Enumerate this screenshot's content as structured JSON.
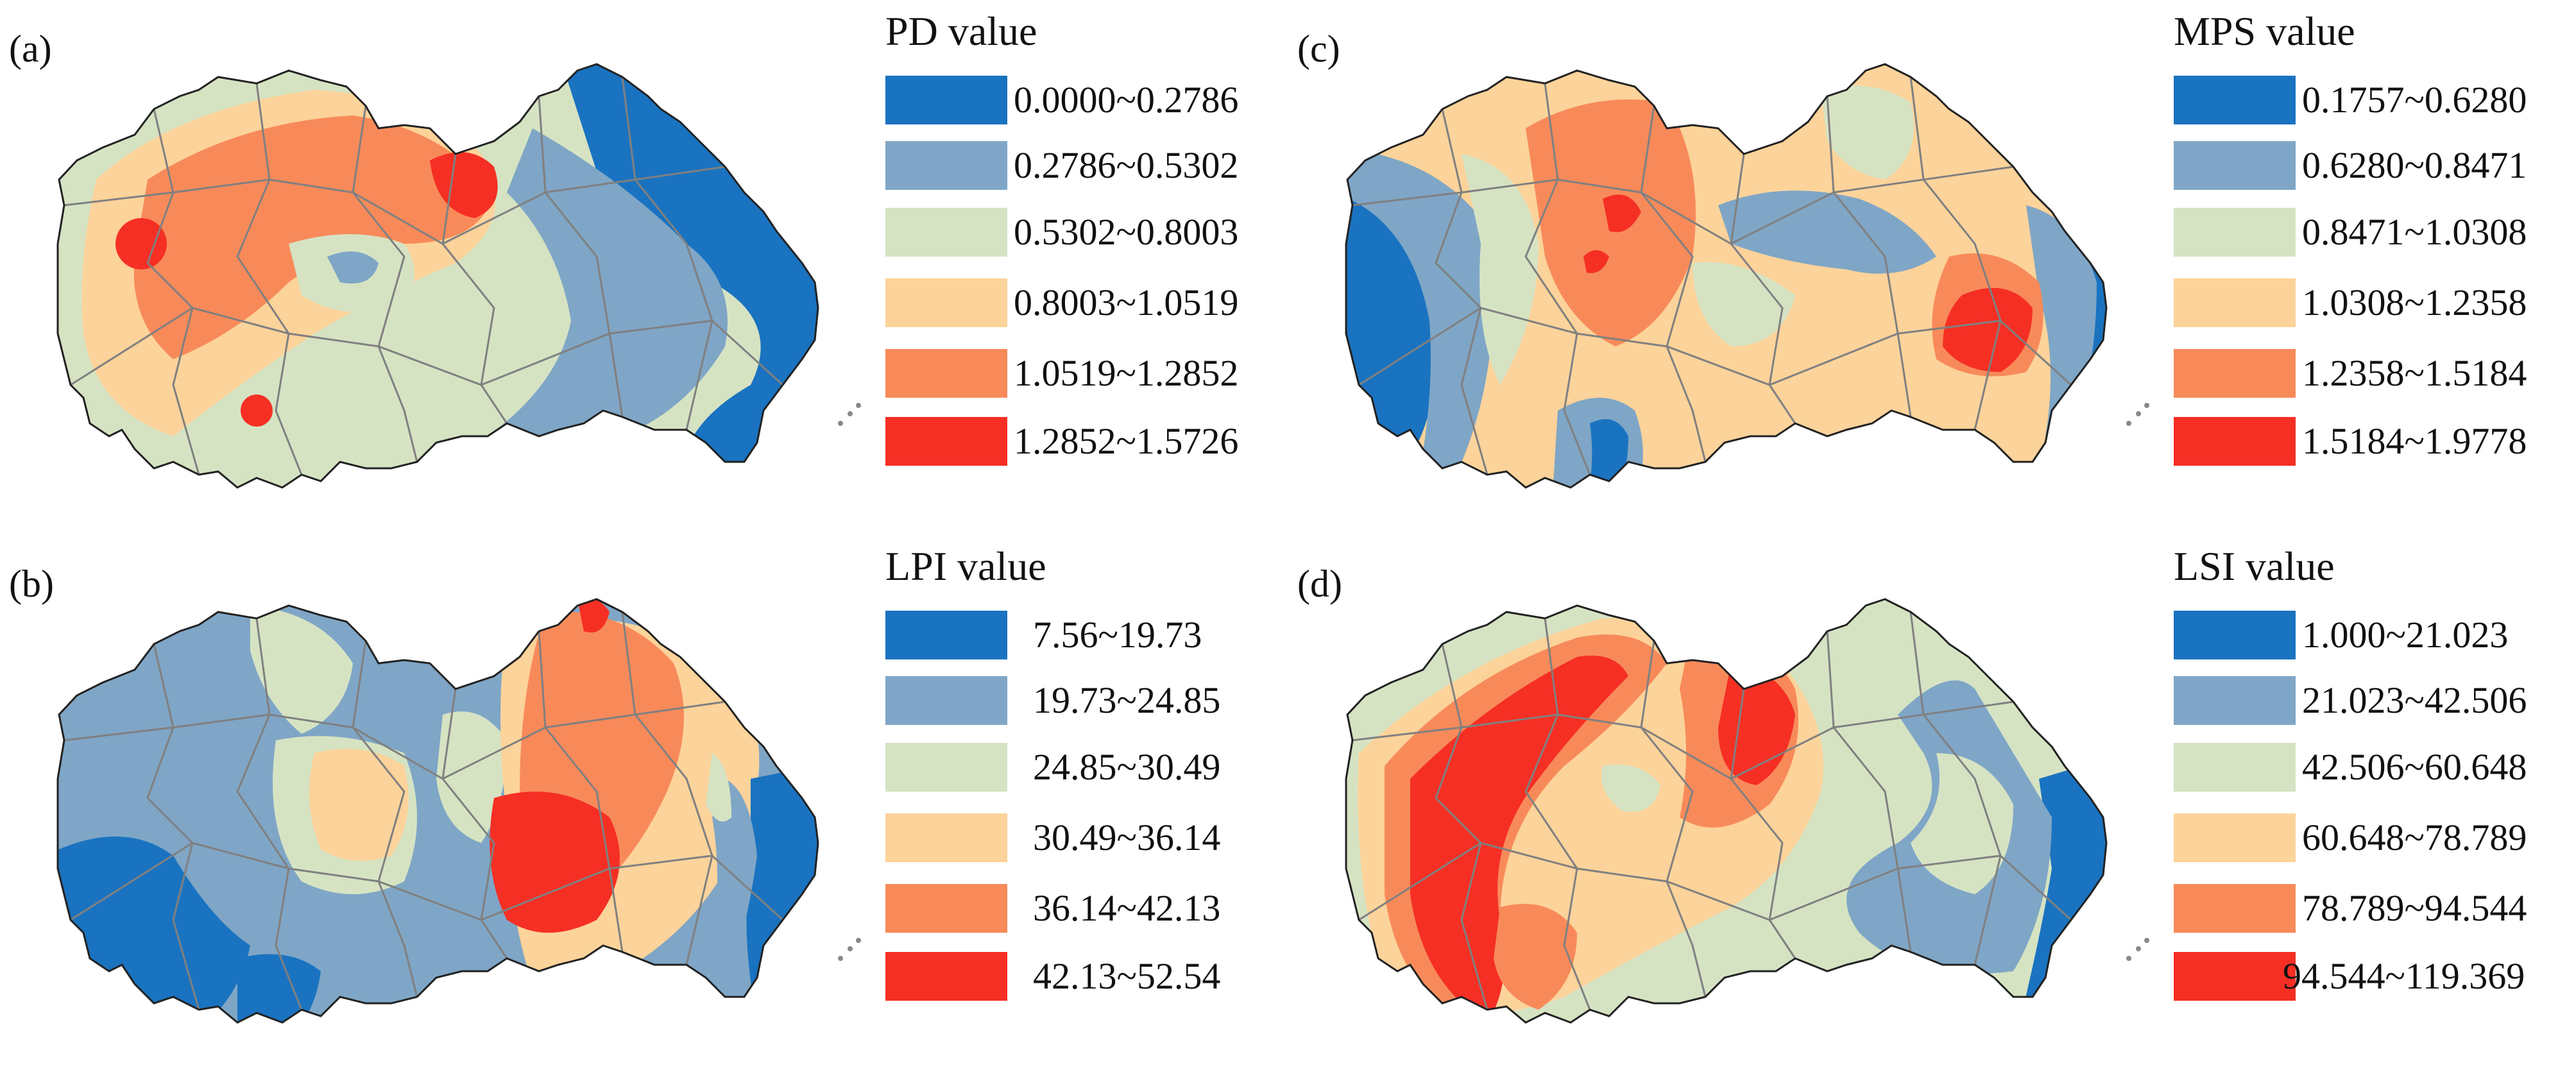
{
  "palette": [
    "#1a73c0",
    "#7fa6c6",
    "#d6e3c3",
    "#fcd39a",
    "#f88a5a",
    "#f52f24"
  ],
  "boundary_color": "#808080",
  "panels": [
    {
      "label": "(a)",
      "legend_title": "PD value",
      "classes": [
        "0.0000~0.2786",
        "0.2786~0.5302",
        "0.5302~0.8003",
        "0.8003~1.0519",
        "1.0519~1.2852",
        "1.2852~1.5726"
      ]
    },
    {
      "label": "(b)",
      "legend_title": "LPI value",
      "classes": [
        "7.56~19.73",
        "19.73~24.85",
        "24.85~30.49",
        "30.49~36.14",
        "36.14~42.13",
        "42.13~52.54"
      ]
    },
    {
      "label": "(c)",
      "legend_title": "MPS value",
      "classes": [
        "0.1757~0.6280",
        "0.6280~0.8471",
        "0.8471~1.0308",
        "1.0308~1.2358",
        "1.2358~1.5184",
        "1.5184~1.9778"
      ]
    },
    {
      "label": "(d)",
      "legend_title": "LSI value",
      "classes": [
        "1.000~21.023",
        "21.023~42.506",
        "42.506~60.648",
        "60.648~78.789",
        "78.789~94.544",
        "94.544~119.369"
      ]
    }
  ]
}
